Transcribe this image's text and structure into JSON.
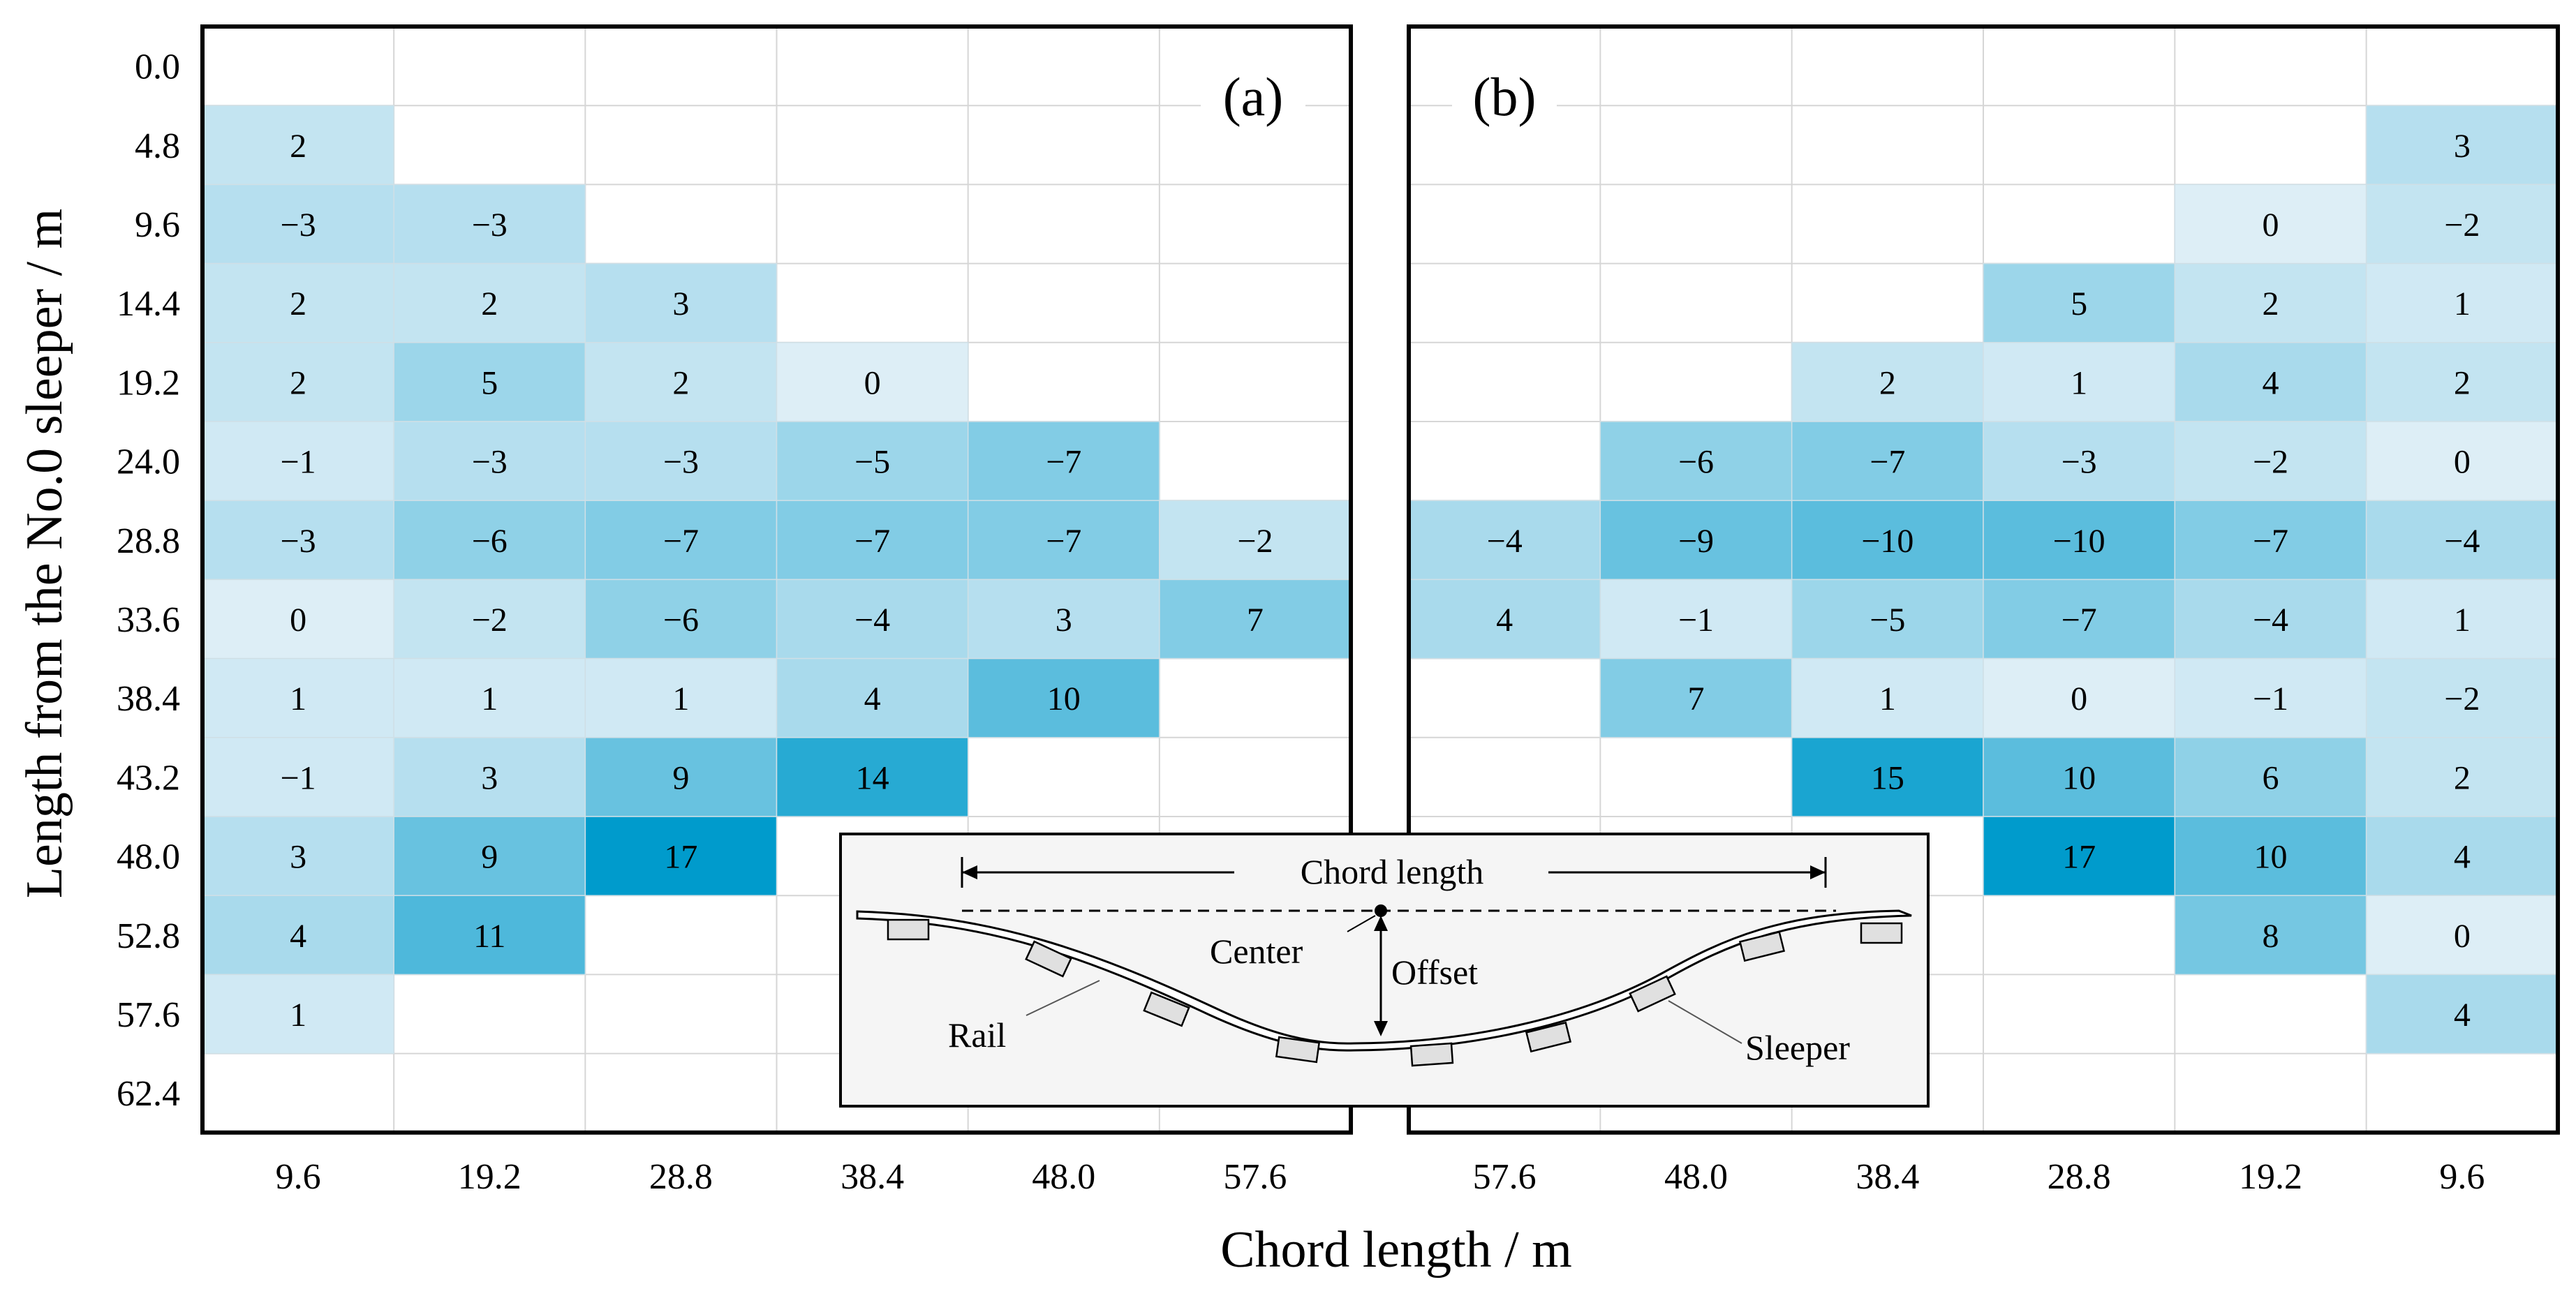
{
  "chart_data": {
    "type": "heatmap",
    "xlabel": "Chord length / m",
    "ylabel": "Length from the No.0 sleeper / m",
    "y_ticks": [
      "0.0",
      "4.8",
      "9.6",
      "14.4",
      "19.2",
      "24.0",
      "28.8",
      "33.6",
      "38.4",
      "43.2",
      "48.0",
      "52.8",
      "57.6",
      "62.4"
    ],
    "color_scale": {
      "min": -17,
      "max": 17,
      "low_color": "#ddeef6",
      "high_color": "#009bcc"
    },
    "panels": [
      {
        "label": "(a)",
        "x_ticks": [
          "9.6",
          "19.2",
          "28.8",
          "38.4",
          "48.0",
          "57.6"
        ],
        "rows": [
          [
            null,
            null,
            null,
            null,
            null,
            null
          ],
          [
            2,
            null,
            null,
            null,
            null,
            null
          ],
          [
            -3,
            -3,
            null,
            null,
            null,
            null
          ],
          [
            2,
            2,
            3,
            null,
            null,
            null
          ],
          [
            2,
            5,
            2,
            0,
            null,
            null
          ],
          [
            -1,
            -3,
            -3,
            -5,
            -7,
            null
          ],
          [
            -3,
            -6,
            -7,
            -7,
            -7,
            -2
          ],
          [
            0,
            -2,
            -6,
            -4,
            3,
            7
          ],
          [
            1,
            1,
            1,
            4,
            10,
            null
          ],
          [
            -1,
            3,
            9,
            14,
            null,
            null
          ],
          [
            3,
            9,
            17,
            null,
            null,
            null
          ],
          [
            4,
            11,
            null,
            null,
            null,
            null
          ],
          [
            1,
            null,
            null,
            null,
            null,
            null
          ],
          [
            null,
            null,
            null,
            null,
            null,
            null
          ]
        ]
      },
      {
        "label": "(b)",
        "x_ticks": [
          "57.6",
          "48.0",
          "38.4",
          "28.8",
          "19.2",
          "9.6"
        ],
        "rows": [
          [
            null,
            null,
            null,
            null,
            null,
            null
          ],
          [
            null,
            null,
            null,
            null,
            null,
            3
          ],
          [
            null,
            null,
            null,
            null,
            0,
            -2
          ],
          [
            null,
            null,
            null,
            5,
            2,
            1
          ],
          [
            null,
            null,
            2,
            1,
            4,
            2
          ],
          [
            null,
            -6,
            -7,
            -3,
            -2,
            0
          ],
          [
            -4,
            -9,
            -10,
            -10,
            -7,
            -4
          ],
          [
            4,
            -1,
            -5,
            -7,
            -4,
            1
          ],
          [
            null,
            7,
            1,
            0,
            -1,
            -2
          ],
          [
            null,
            null,
            15,
            10,
            6,
            2
          ],
          [
            null,
            null,
            null,
            17,
            10,
            4
          ],
          [
            null,
            null,
            null,
            null,
            8,
            0
          ],
          [
            null,
            null,
            null,
            null,
            null,
            4
          ],
          [
            null,
            null,
            null,
            null,
            null,
            null
          ]
        ]
      }
    ],
    "inset": {
      "chord_label": "Chord length",
      "center_label": "Center",
      "offset_label": "Offset",
      "rail_label": "Rail",
      "sleeper_label": "Sleeper"
    }
  }
}
